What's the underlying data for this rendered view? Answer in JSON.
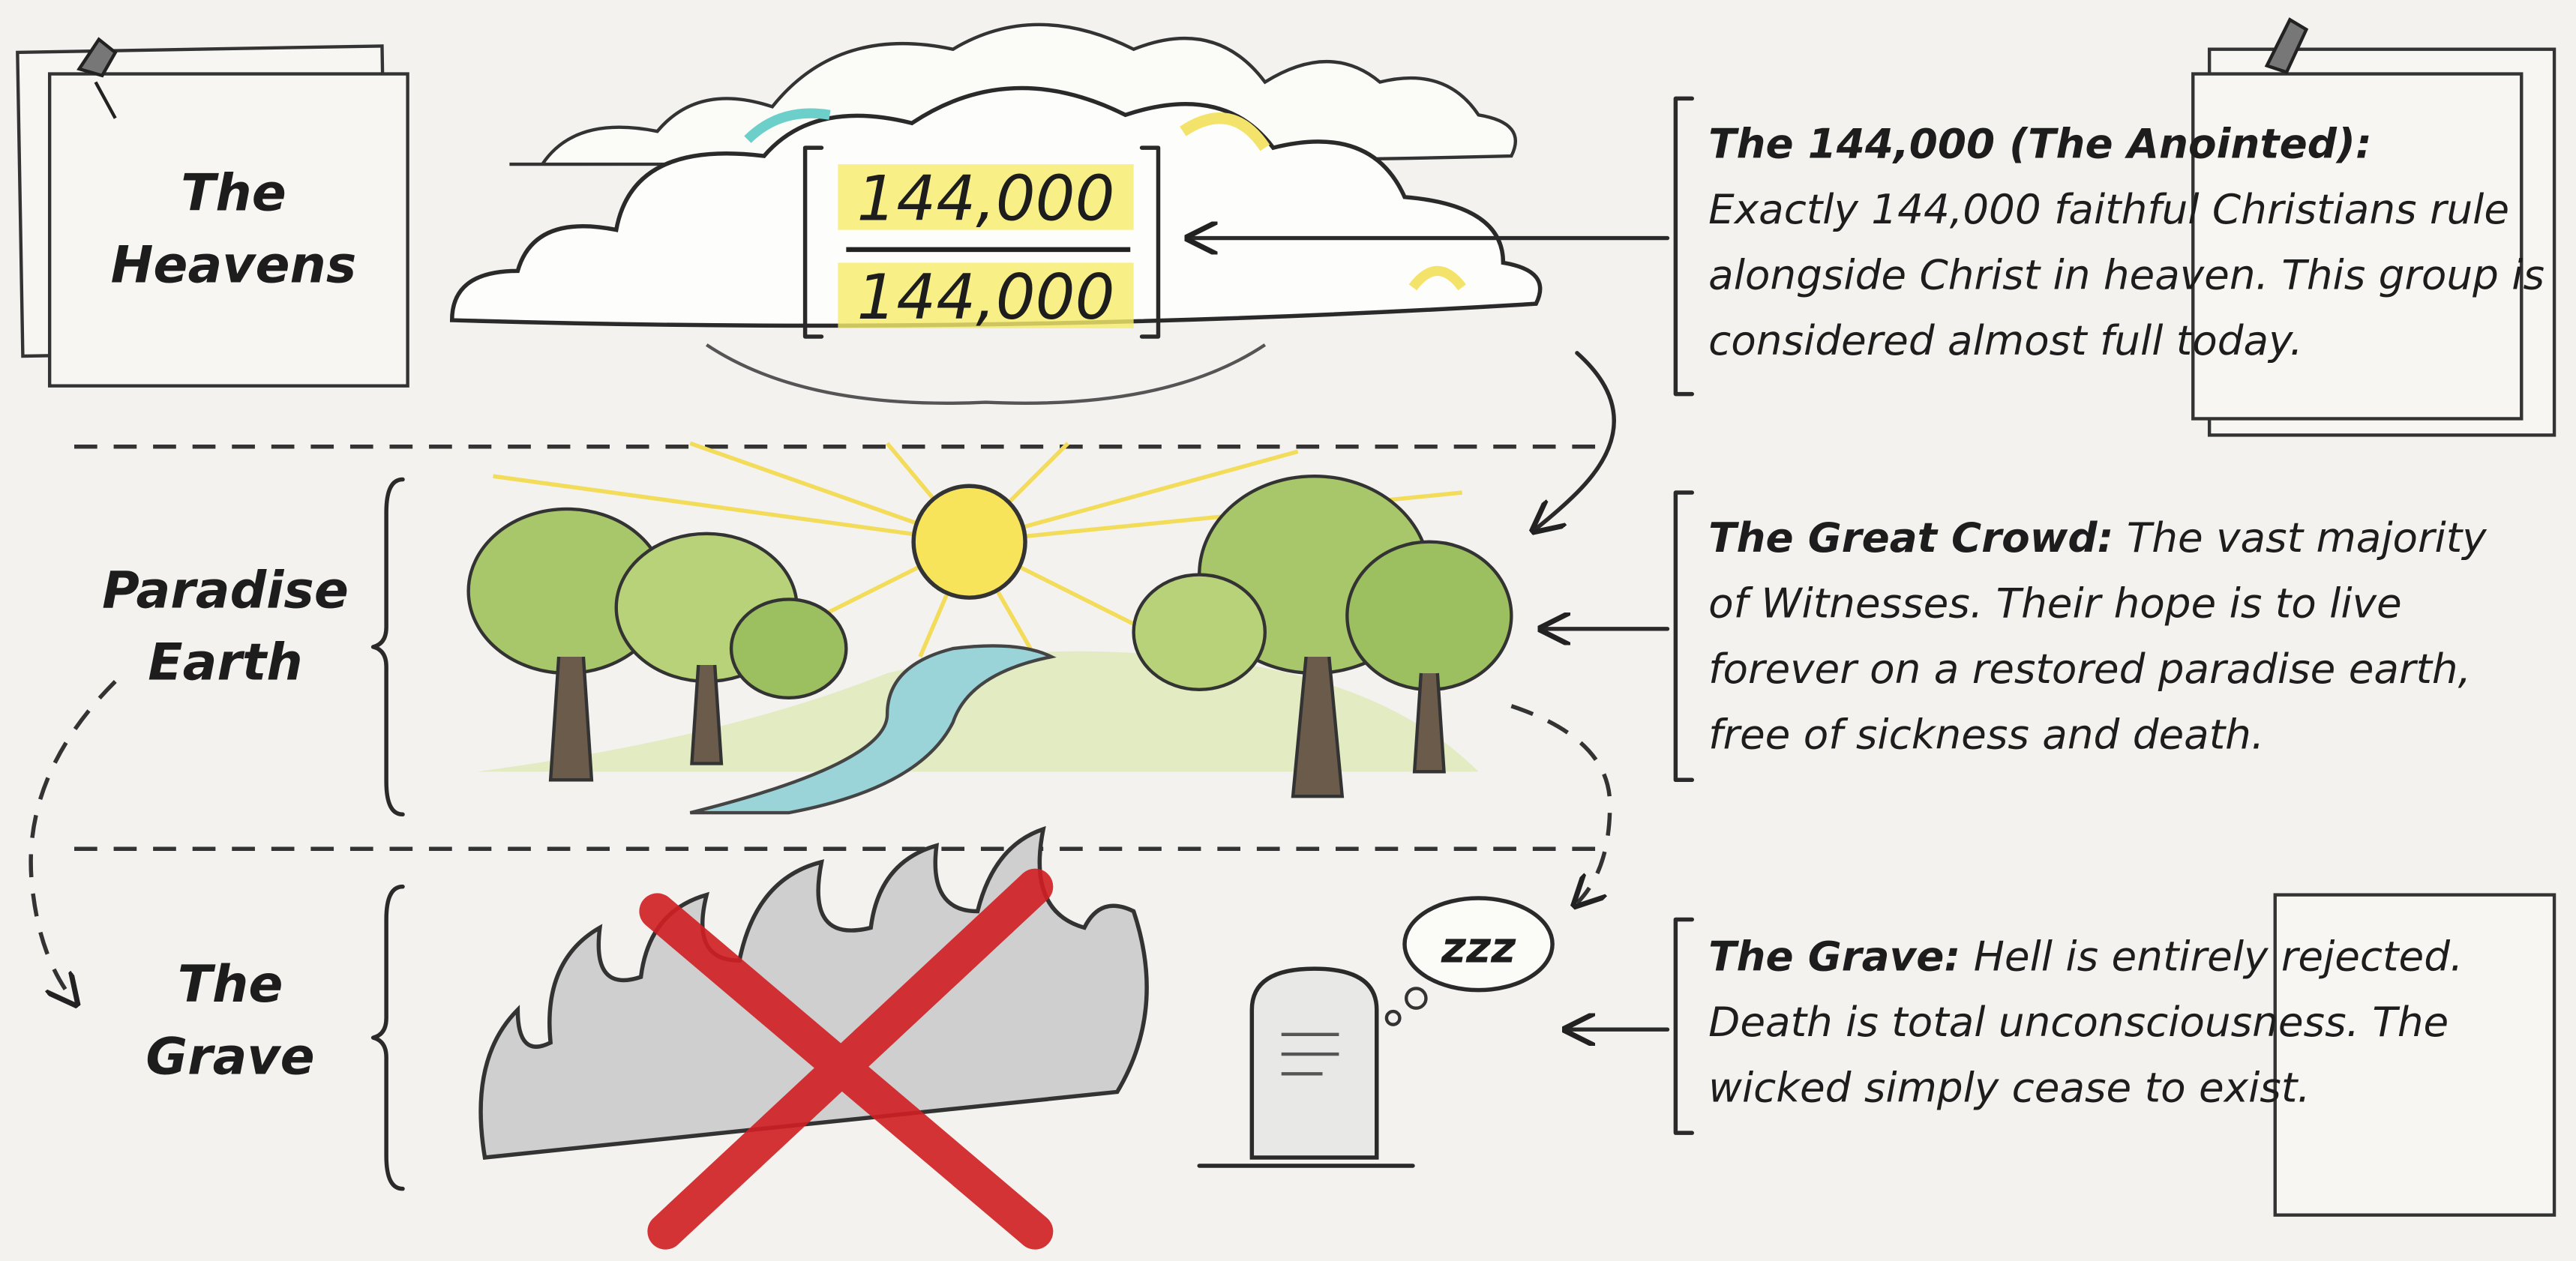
{
  "levels": [
    {
      "label": "The Heavens"
    },
    {
      "label": "Paradise Earth"
    },
    {
      "label": "The Grave"
    }
  ],
  "cloud": {
    "numerator": "144,000",
    "denominator": "144,000"
  },
  "thought_bubble": "zzz",
  "notes": [
    {
      "heading": "The 144,000 (The Anointed):",
      "text": "Exactly 144,000 faithful Christians rule alongside Christ in heaven. This group is considered almost full today."
    },
    {
      "heading": "The Great Crowd:",
      "text": "The vast majority of Witnesses. Their hope is to live forever on a restored paradise earth, free of sickness and death."
    },
    {
      "heading": "The Grave:",
      "text": "Hell is entirely rejected. Death is total unconsciousness. The wicked simply cease to exist."
    }
  ]
}
